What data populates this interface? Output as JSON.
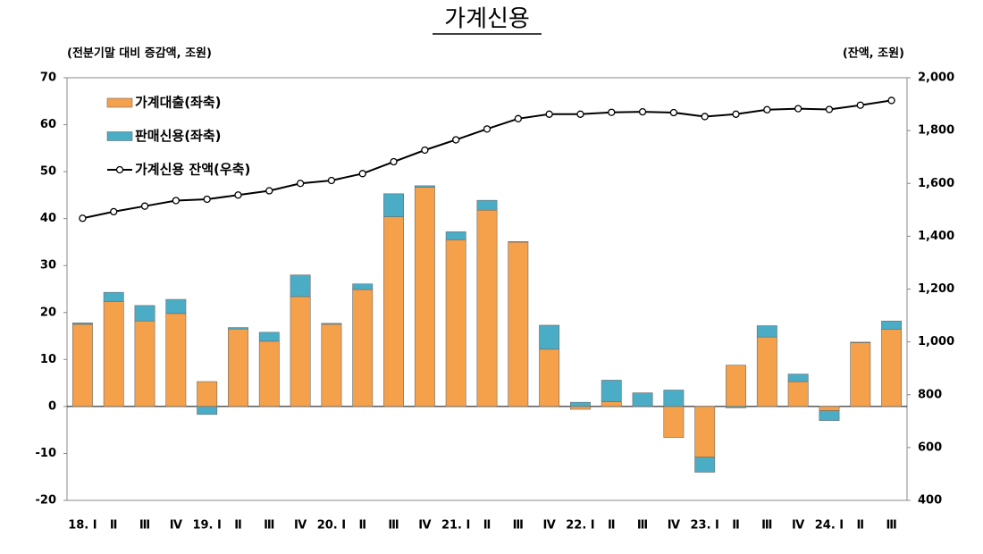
{
  "chart_data": {
    "type": "bar",
    "stacked": true,
    "title": "가계신용",
    "y_axis_title": "(전분기말 대비 증감액, 조원)",
    "y2_axis_title": "(잔액, 조원)",
    "categories": [
      "18. Ⅰ",
      "Ⅱ",
      "Ⅲ",
      "Ⅳ",
      "19. Ⅰ",
      "Ⅱ",
      "Ⅲ",
      "Ⅳ",
      "20. Ⅰ",
      "Ⅱ",
      "Ⅲ",
      "Ⅳ",
      "21. Ⅰ",
      "Ⅱ",
      "Ⅲ",
      "Ⅳ",
      "22. Ⅰ",
      "Ⅱ",
      "Ⅲ",
      "Ⅳ",
      "23. Ⅰ",
      "Ⅱ",
      "Ⅲ",
      "Ⅳ",
      "24. Ⅰ",
      "Ⅱ",
      "Ⅲ"
    ],
    "series": [
      {
        "name": "가계대출(좌축)",
        "type": "bar",
        "color": "#f5a04a",
        "values": [
          17.5,
          22.3,
          18.2,
          19.8,
          5.3,
          16.5,
          13.9,
          23.4,
          17.5,
          24.9,
          40.4,
          46.7,
          35.5,
          41.8,
          35.0,
          12.2,
          -0.6,
          1.0,
          0.0,
          -6.6,
          -10.8,
          8.8,
          14.8,
          5.3,
          -0.9,
          13.6,
          16.4
        ]
      },
      {
        "name": "판매신용(좌축)",
        "type": "bar",
        "color": "#4bacc6",
        "values": [
          0.3,
          2.0,
          3.3,
          3.0,
          -1.7,
          0.3,
          1.9,
          4.6,
          0.2,
          1.2,
          4.9,
          0.3,
          1.7,
          2.1,
          0.1,
          5.1,
          0.9,
          4.6,
          2.9,
          3.5,
          -3.2,
          -0.3,
          2.4,
          1.6,
          -2.1,
          0.1,
          1.8
        ]
      },
      {
        "name": "가계신용 잔액(우축)",
        "type": "line",
        "axis": "y2",
        "color": "#000000",
        "values": [
          1468,
          1493,
          1514,
          1535,
          1540,
          1556,
          1572,
          1600,
          1611,
          1637,
          1682,
          1726,
          1765,
          1806,
          1845,
          1862,
          1862,
          1869,
          1871,
          1868,
          1853,
          1862,
          1879,
          1883,
          1880,
          1896,
          1914
        ]
      }
    ],
    "ylim": [
      -20,
      70
    ],
    "yticks": [
      -20,
      -10,
      0,
      10,
      20,
      30,
      40,
      50,
      60,
      70
    ],
    "y2lim": [
      400,
      2000
    ],
    "y2ticks": [
      400,
      600,
      800,
      {
        "value": 1000,
        "label": "1,000"
      },
      {
        "value": 1200,
        "label": "1,200"
      },
      {
        "value": 1400,
        "label": "1,400"
      },
      {
        "value": 1600,
        "label": "1,600"
      },
      {
        "value": 1800,
        "label": "1,800"
      },
      {
        "value": 2000,
        "label": "2,000"
      }
    ],
    "grid": false,
    "legend_position": "upper-left"
  }
}
